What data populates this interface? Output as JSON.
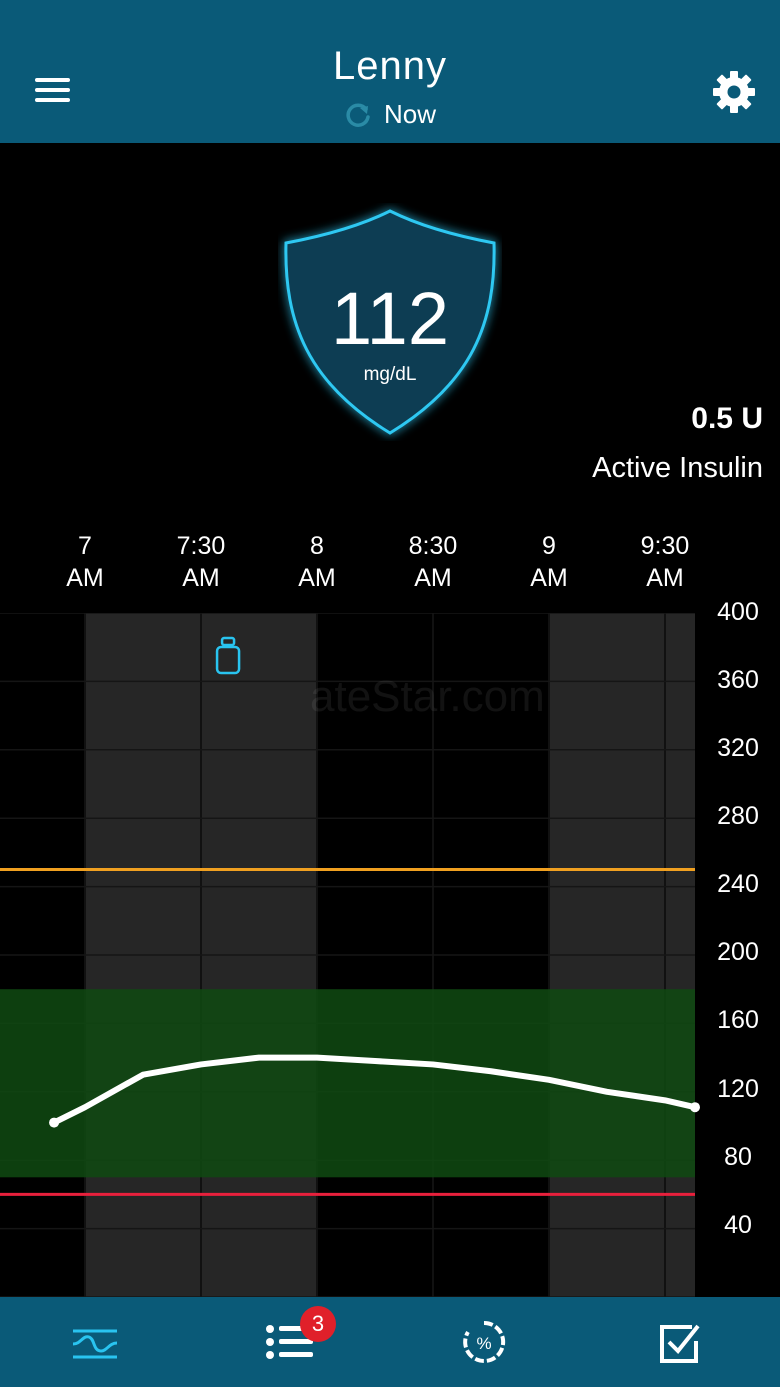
{
  "header": {
    "title": "Lenny",
    "status": "Now"
  },
  "glucose": {
    "value": "112",
    "unit": "mg/dL"
  },
  "insulin": {
    "value": "0.5 U",
    "label": "Active Insulin"
  },
  "times": [
    {
      "time": "7",
      "ampm": "AM"
    },
    {
      "time": "7:30",
      "ampm": "AM"
    },
    {
      "time": "8",
      "ampm": "AM"
    },
    {
      "time": "8:30",
      "ampm": "AM"
    },
    {
      "time": "9",
      "ampm": "AM"
    },
    {
      "time": "9:30",
      "ampm": "AM"
    }
  ],
  "yticks": [
    "400",
    "360",
    "320",
    "280",
    "240",
    "200",
    "160",
    "120",
    "80",
    "40"
  ],
  "watermark": "ateStar.com",
  "tabs": {
    "list_badge": "3"
  },
  "colors": {
    "header": "#0a5a78",
    "accent": "#29c4f0",
    "high_line": "#f0a020",
    "low_line": "#e8203c",
    "target_band": "#0f4a12",
    "line": "#ffffff"
  },
  "chart_data": {
    "type": "line",
    "x": [
      "6:52",
      "7:00",
      "7:15",
      "7:30",
      "7:45",
      "8:00",
      "8:15",
      "8:30",
      "8:45",
      "9:00",
      "9:15",
      "9:30",
      "9:45"
    ],
    "series": [
      {
        "values": [
          102,
          111,
          130,
          136,
          140,
          140,
          138,
          136,
          132,
          127,
          120,
          115,
          111
        ]
      }
    ],
    "ylim": [
      0,
      400
    ],
    "high_threshold": 250,
    "low_threshold": 60,
    "target_range": [
      70,
      180
    ],
    "events": [
      {
        "x": "7:37",
        "type": "insulin-vial"
      }
    ],
    "grid": true
  }
}
